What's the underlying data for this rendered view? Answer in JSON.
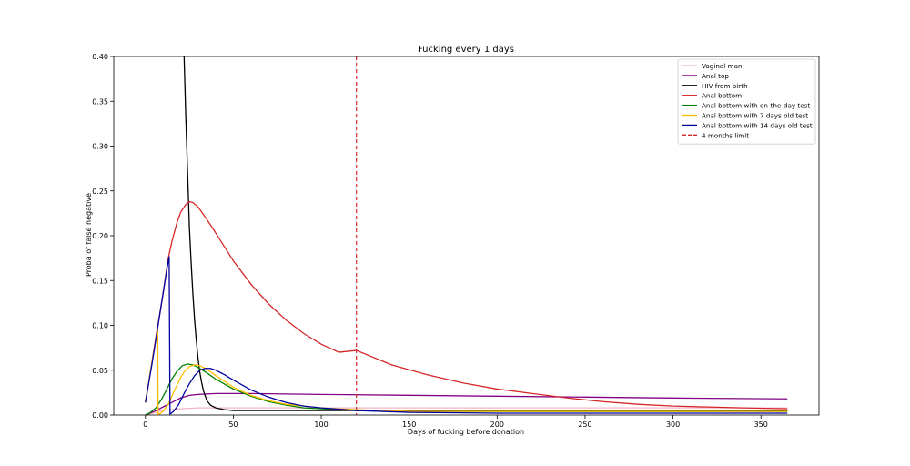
{
  "chart_data": {
    "type": "line",
    "title": "Fucking every 1 days",
    "xlabel": "Days of fucking before donation",
    "ylabel": "Proba of false negative",
    "xlim": [
      -18,
      383
    ],
    "ylim": [
      0,
      0.4
    ],
    "xticks": [
      0,
      50,
      100,
      150,
      200,
      250,
      300,
      350
    ],
    "yticks": [
      0.0,
      0.05,
      0.1,
      0.15,
      0.2,
      0.25,
      0.3,
      0.35,
      0.4
    ],
    "ytick_labels": [
      "0.00",
      "0.05",
      "0.10",
      "0.15",
      "0.20",
      "0.25",
      "0.30",
      "0.35",
      "0.40"
    ],
    "grid": false,
    "legend_position": "top-right",
    "series": [
      {
        "name": "Vaginal man",
        "color": "#f4b6c2",
        "x": [
          0,
          10,
          20,
          30,
          40,
          60,
          100,
          150,
          200,
          250,
          300,
          365
        ],
        "y": [
          0,
          0.005,
          0.007,
          0.008,
          0.008,
          0.008,
          0.008,
          0.008,
          0.008,
          0.008,
          0.008,
          0.008
        ]
      },
      {
        "name": "Anal top",
        "color": "#800080",
        "x": [
          0,
          5,
          10,
          15,
          20,
          25,
          30,
          40,
          60,
          100,
          150,
          200,
          250,
          300,
          365
        ],
        "y": [
          0,
          0.004,
          0.009,
          0.014,
          0.019,
          0.022,
          0.023,
          0.024,
          0.024,
          0.023,
          0.022,
          0.021,
          0.02,
          0.019,
          0.018
        ]
      },
      {
        "name": "HIV from birth",
        "color": "#000000",
        "x": [
          22,
          23,
          24,
          25,
          26,
          27,
          28,
          29,
          30,
          31,
          32,
          33,
          35,
          37,
          40,
          45,
          50,
          60,
          80,
          100,
          120,
          150,
          200,
          250,
          300,
          365
        ],
        "y": [
          0.4,
          0.33,
          0.27,
          0.21,
          0.17,
          0.135,
          0.105,
          0.082,
          0.062,
          0.047,
          0.036,
          0.027,
          0.016,
          0.011,
          0.008,
          0.006,
          0.005,
          0.005,
          0.005,
          0.005,
          0.005,
          0.005,
          0.005,
          0.005,
          0.005,
          0.005
        ]
      },
      {
        "name": "Anal bottom",
        "color": "#d62728",
        "x": [
          0,
          5,
          10,
          13,
          15,
          18,
          20,
          23,
          25,
          27,
          30,
          35,
          40,
          50,
          60,
          70,
          80,
          90,
          100,
          110,
          120,
          140,
          160,
          180,
          200,
          220,
          240,
          260,
          280,
          300,
          320,
          340,
          365
        ],
        "y": [
          0.014,
          0.075,
          0.135,
          0.175,
          0.193,
          0.215,
          0.226,
          0.235,
          0.238,
          0.237,
          0.232,
          0.218,
          0.203,
          0.172,
          0.146,
          0.124,
          0.106,
          0.091,
          0.079,
          0.07,
          0.072,
          0.056,
          0.045,
          0.036,
          0.029,
          0.024,
          0.019,
          0.015,
          0.012,
          0.01,
          0.009,
          0.008,
          0.007
        ]
      },
      {
        "name": "Anal bottom with on-the-day test",
        "color": "#008000",
        "x": [
          0,
          3,
          6,
          9,
          12,
          15,
          18,
          21,
          24,
          27,
          30,
          35,
          40,
          50,
          60,
          70,
          80,
          90,
          100,
          120,
          150,
          200,
          250,
          300,
          365
        ],
        "y": [
          0,
          0.003,
          0.008,
          0.017,
          0.028,
          0.04,
          0.049,
          0.055,
          0.057,
          0.056,
          0.053,
          0.047,
          0.04,
          0.029,
          0.021,
          0.015,
          0.011,
          0.008,
          0.007,
          0.005,
          0.004,
          0.004,
          0.004,
          0.004,
          0.004
        ]
      },
      {
        "name": "Anal bottom with 7 days old test",
        "color": "#ffbf00",
        "x": [
          0,
          3,
          6,
          7,
          7.2,
          8,
          10,
          13,
          16,
          19,
          22,
          25,
          28,
          31,
          35,
          40,
          50,
          60,
          70,
          80,
          100,
          120,
          150,
          200,
          250,
          300,
          365
        ],
        "y": [
          0.014,
          0.05,
          0.085,
          0.097,
          0.001,
          0.001,
          0.004,
          0.012,
          0.025,
          0.038,
          0.048,
          0.054,
          0.056,
          0.055,
          0.051,
          0.044,
          0.031,
          0.022,
          0.016,
          0.012,
          0.008,
          0.006,
          0.004,
          0.004,
          0.004,
          0.004,
          0.004
        ]
      },
      {
        "name": "Anal bottom with 14 days old test",
        "color": "#0000a0",
        "x": [
          0,
          4,
          8,
          12,
          13.5,
          14,
          16,
          19,
          22,
          25,
          28,
          31,
          34,
          37,
          40,
          45,
          50,
          60,
          70,
          80,
          90,
          100,
          120,
          150,
          200,
          250,
          300,
          365
        ],
        "y": [
          0.014,
          0.06,
          0.11,
          0.16,
          0.177,
          0.001,
          0.004,
          0.012,
          0.024,
          0.035,
          0.044,
          0.05,
          0.052,
          0.052,
          0.05,
          0.045,
          0.039,
          0.028,
          0.02,
          0.014,
          0.01,
          0.008,
          0.005,
          0.003,
          0.002,
          0.002,
          0.002,
          0.002
        ]
      }
    ],
    "vline": {
      "name": "4 months limit",
      "x": 120,
      "color": "#d62728",
      "dash": true
    }
  }
}
